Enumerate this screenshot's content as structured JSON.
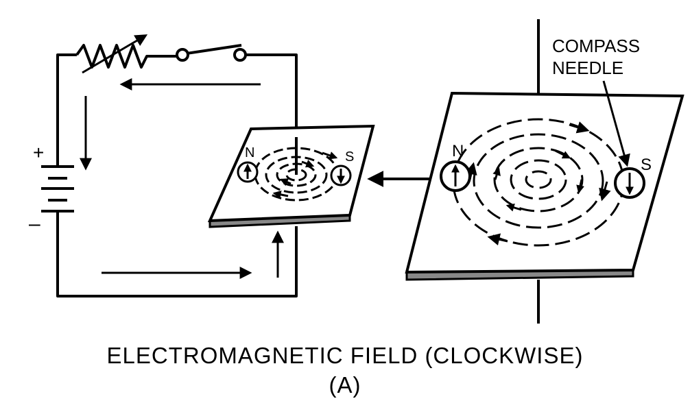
{
  "caption": {
    "title": "ELECTROMAGNETIC  FIELD (CLOCKWISE)",
    "subtitle": "(A)"
  },
  "battery": {
    "plus": "+",
    "minus": "–"
  },
  "small_plate": {
    "north": "N",
    "south": "S"
  },
  "large_plate": {
    "north": "N",
    "south": "S"
  },
  "callout": {
    "line1": "COMPASS",
    "line2": "NEEDLE"
  },
  "colors": {
    "ink": "#000000",
    "background": "#ffffff",
    "plate_edge": "#888888"
  }
}
